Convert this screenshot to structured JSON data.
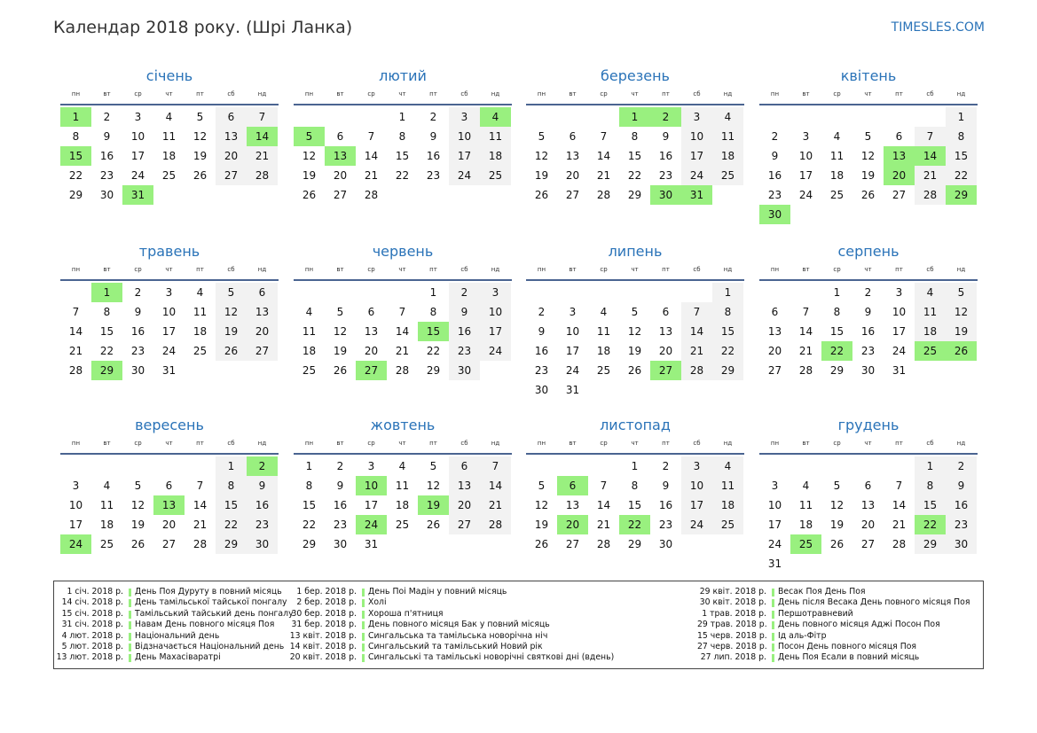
{
  "header": {
    "title": "Календар 2018 року. (Шрі Ланка)",
    "site": "TIMESLES.COM"
  },
  "weekdays": [
    "пн",
    "вт",
    "ср",
    "чт",
    "пт",
    "сб",
    "нд"
  ],
  "colors": {
    "accent": "#2a73b8",
    "holiday": "#99f07f",
    "weekend": "#f2f2f2",
    "rule": "#4a6491"
  },
  "months": [
    {
      "name": "січень",
      "offset": 0,
      "days": 31,
      "holidays": [
        1,
        14,
        15,
        31
      ]
    },
    {
      "name": "лютий",
      "offset": 3,
      "days": 28,
      "holidays": [
        4,
        5,
        13
      ]
    },
    {
      "name": "березень",
      "offset": 3,
      "days": 31,
      "holidays": [
        1,
        2,
        30,
        31
      ]
    },
    {
      "name": "квітень",
      "offset": 6,
      "days": 30,
      "holidays": [
        13,
        14,
        20,
        29,
        30
      ]
    },
    {
      "name": "травень",
      "offset": 1,
      "days": 31,
      "holidays": [
        1,
        29
      ]
    },
    {
      "name": "червень",
      "offset": 4,
      "days": 30,
      "holidays": [
        15,
        27
      ]
    },
    {
      "name": "липень",
      "offset": 6,
      "days": 31,
      "holidays": [
        27
      ]
    },
    {
      "name": "серпень",
      "offset": 2,
      "days": 31,
      "holidays": [
        22,
        25,
        26
      ]
    },
    {
      "name": "вересень",
      "offset": 5,
      "days": 30,
      "holidays": [
        2,
        13,
        24
      ]
    },
    {
      "name": "жовтень",
      "offset": 0,
      "days": 31,
      "holidays": [
        10,
        19,
        24
      ]
    },
    {
      "name": "листопад",
      "offset": 3,
      "days": 30,
      "holidays": [
        6,
        20,
        22
      ]
    },
    {
      "name": "грудень",
      "offset": 5,
      "days": 31,
      "holidays": [
        22,
        25
      ]
    }
  ],
  "holiday_list": [
    [
      {
        "date": "1 січ. 2018 р.",
        "name": "День Поя Дуруту в повний місяць"
      },
      {
        "date": "14 січ. 2018 р.",
        "name": "День тамільської тайської понгалу"
      },
      {
        "date": "15 січ. 2018 р.",
        "name": "Тамільський тайський день понгалу"
      },
      {
        "date": "31 січ. 2018 р.",
        "name": "Навам День повного місяця Поя"
      },
      {
        "date": "4 лют. 2018 р.",
        "name": "Національний день"
      },
      {
        "date": "5 лют. 2018 р.",
        "name": "Відзначається Національний день"
      },
      {
        "date": "13 лют. 2018 р.",
        "name": "День Махасіваратрі"
      }
    ],
    [
      {
        "date": "1 бер. 2018 р.",
        "name": "День Поі Мадін у повний місяць"
      },
      {
        "date": "2 бер. 2018 р.",
        "name": "Холі"
      },
      {
        "date": "30 бер. 2018 р.",
        "name": "Хороша п'ятниця"
      },
      {
        "date": "31 бер. 2018 р.",
        "name": "День повного місяця Бак у повний місяць"
      },
      {
        "date": "13 квіт. 2018 р.",
        "name": "Сингальська та тамільська новорічна ніч"
      },
      {
        "date": "14 квіт. 2018 р.",
        "name": "Сингальський та тамільський Новий рік"
      },
      {
        "date": "20 квіт. 2018 р.",
        "name": "Сингальські та тамільські новорічні святкові дні (вдень)"
      }
    ],
    [
      {
        "date": "29 квіт. 2018 р.",
        "name": "Весак Поя День Поя"
      },
      {
        "date": "30 квіт. 2018 р.",
        "name": "День після Весака День повного місяця Поя"
      },
      {
        "date": "1 трав. 2018 р.",
        "name": "Першотравневий"
      },
      {
        "date": "29 трав. 2018 р.",
        "name": "День повного місяця Аджі Посон Поя"
      },
      {
        "date": "15 черв. 2018 р.",
        "name": "Ід аль-Фітр"
      },
      {
        "date": "27 черв. 2018 р.",
        "name": "Посон День повного місяця Поя"
      },
      {
        "date": "27 лип. 2018 р.",
        "name": "День Поя Есали в повний місяць"
      }
    ]
  ]
}
